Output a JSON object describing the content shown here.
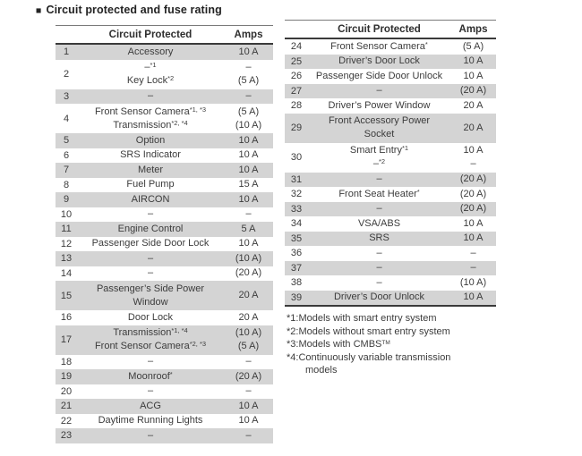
{
  "title": "Circuit protected and fuse rating",
  "title_bullet": "■",
  "colors": {
    "row_shade": "#d4d4d4",
    "text": "#3c3c3c",
    "rule_dark": "#3a3a3a"
  },
  "left_table": {
    "header": {
      "circuit": "Circuit Protected",
      "amps": "Amps"
    },
    "rows": [
      {
        "num": "1",
        "shaded": true,
        "lines": [
          {
            "c": "Accessory",
            "a": "10 A"
          }
        ]
      },
      {
        "num": "2",
        "shaded": false,
        "lines": [
          {
            "c": "–",
            "s": "*1",
            "a": "–"
          },
          {
            "c": "Key Lock",
            "s": "*2",
            "a": "(5 A)"
          }
        ]
      },
      {
        "num": "3",
        "shaded": true,
        "lines": [
          {
            "c": "–",
            "a": "–"
          }
        ]
      },
      {
        "num": "4",
        "shaded": false,
        "lines": [
          {
            "c": "Front Sensor Camera",
            "s": "*1, *3",
            "a": "(5 A)"
          },
          {
            "c": "Transmission",
            "s": "*2, *4",
            "a": "(10 A)"
          }
        ]
      },
      {
        "num": "5",
        "shaded": true,
        "lines": [
          {
            "c": "Option",
            "a": "10 A"
          }
        ]
      },
      {
        "num": "6",
        "shaded": false,
        "lines": [
          {
            "c": "SRS Indicator",
            "a": "10 A"
          }
        ]
      },
      {
        "num": "7",
        "shaded": true,
        "lines": [
          {
            "c": "Meter",
            "a": "10 A"
          }
        ]
      },
      {
        "num": "8",
        "shaded": false,
        "lines": [
          {
            "c": "Fuel Pump",
            "a": "15 A"
          }
        ]
      },
      {
        "num": "9",
        "shaded": true,
        "lines": [
          {
            "c": "AIRCON",
            "a": "10 A"
          }
        ]
      },
      {
        "num": "10",
        "shaded": false,
        "lines": [
          {
            "c": "–",
            "a": "–"
          }
        ]
      },
      {
        "num": "11",
        "shaded": true,
        "lines": [
          {
            "c": "Engine Control",
            "a": "5 A"
          }
        ]
      },
      {
        "num": "12",
        "shaded": false,
        "lines": [
          {
            "c": "Passenger Side Door Lock",
            "a": "10 A"
          }
        ]
      },
      {
        "num": "13",
        "shaded": true,
        "lines": [
          {
            "c": "–",
            "a": "(10 A)"
          }
        ]
      },
      {
        "num": "14",
        "shaded": false,
        "lines": [
          {
            "c": "–",
            "a": "(20 A)"
          }
        ]
      },
      {
        "num": "15",
        "shaded": true,
        "wrap": true,
        "lines": [
          {
            "c": "Passenger’s Side Power Window",
            "a": "20 A"
          }
        ]
      },
      {
        "num": "16",
        "shaded": false,
        "lines": [
          {
            "c": "Door Lock",
            "a": "20 A"
          }
        ]
      },
      {
        "num": "17",
        "shaded": true,
        "lines": [
          {
            "c": "Transmission",
            "s": "*1, *4",
            "a": "(10 A)"
          },
          {
            "c": "Front Sensor Camera",
            "s": "*2, *3",
            "a": "(5 A)"
          }
        ]
      },
      {
        "num": "18",
        "shaded": false,
        "lines": [
          {
            "c": "–",
            "a": "–"
          }
        ]
      },
      {
        "num": "19",
        "shaded": true,
        "lines": [
          {
            "c": "Moonroof",
            "s": "*",
            "a": "(20 A)"
          }
        ]
      },
      {
        "num": "20",
        "shaded": false,
        "lines": [
          {
            "c": "–",
            "a": "–"
          }
        ]
      },
      {
        "num": "21",
        "shaded": true,
        "lines": [
          {
            "c": "ACG",
            "a": "10 A"
          }
        ]
      },
      {
        "num": "22",
        "shaded": false,
        "lines": [
          {
            "c": "Daytime Running Lights",
            "a": "10 A"
          }
        ]
      },
      {
        "num": "23",
        "shaded": true,
        "lines": [
          {
            "c": "–",
            "a": "–"
          }
        ]
      }
    ]
  },
  "right_table": {
    "header": {
      "circuit": "Circuit Protected",
      "amps": "Amps"
    },
    "rows": [
      {
        "num": "24",
        "shaded": false,
        "lines": [
          {
            "c": "Front Sensor Camera",
            "s": "*",
            "a": "(5 A)"
          }
        ]
      },
      {
        "num": "25",
        "shaded": true,
        "lines": [
          {
            "c": "Driver’s Door Lock",
            "a": "10 A"
          }
        ]
      },
      {
        "num": "26",
        "shaded": false,
        "lines": [
          {
            "c": "Passenger Side Door Unlock",
            "a": "10 A"
          }
        ]
      },
      {
        "num": "27",
        "shaded": true,
        "lines": [
          {
            "c": "–",
            "a": "(20 A)"
          }
        ]
      },
      {
        "num": "28",
        "shaded": false,
        "lines": [
          {
            "c": "Driver’s Power Window",
            "a": "20 A"
          }
        ]
      },
      {
        "num": "29",
        "shaded": true,
        "wrap": true,
        "lines": [
          {
            "c": "Front Accessory Power Socket",
            "a": "20 A"
          }
        ]
      },
      {
        "num": "30",
        "shaded": false,
        "lines": [
          {
            "c": "Smart Entry",
            "s": "*1",
            "a": "10 A"
          },
          {
            "c": "–",
            "s": "*2",
            "a": "–"
          }
        ]
      },
      {
        "num": "31",
        "shaded": true,
        "lines": [
          {
            "c": "–",
            "a": "(20 A)"
          }
        ]
      },
      {
        "num": "32",
        "shaded": false,
        "lines": [
          {
            "c": "Front Seat Heater",
            "s": "*",
            "a": "(20 A)"
          }
        ]
      },
      {
        "num": "33",
        "shaded": true,
        "lines": [
          {
            "c": "–",
            "a": "(20 A)"
          }
        ]
      },
      {
        "num": "34",
        "shaded": false,
        "lines": [
          {
            "c": "VSA/ABS",
            "a": "10 A"
          }
        ]
      },
      {
        "num": "35",
        "shaded": true,
        "lines": [
          {
            "c": "SRS",
            "a": "10 A"
          }
        ]
      },
      {
        "num": "36",
        "shaded": false,
        "lines": [
          {
            "c": "–",
            "a": "–"
          }
        ]
      },
      {
        "num": "37",
        "shaded": true,
        "lines": [
          {
            "c": "–",
            "a": "–"
          }
        ]
      },
      {
        "num": "38",
        "shaded": false,
        "lines": [
          {
            "c": "–",
            "a": "(10 A)"
          }
        ]
      },
      {
        "num": "39",
        "shaded": true,
        "lines": [
          {
            "c": "Driver’s Door Unlock",
            "a": "10 A"
          }
        ]
      }
    ]
  },
  "footnotes": [
    {
      "text": "*1:Models with smart entry system"
    },
    {
      "text": "*2:Models without smart entry system"
    },
    {
      "text": "*3:Models with CMBS",
      "sup": "TM"
    },
    {
      "text": "*4:Continuously variable transmission models"
    }
  ]
}
